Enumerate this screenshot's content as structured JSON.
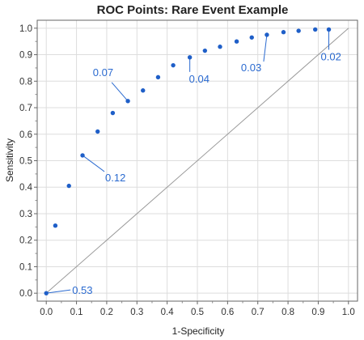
{
  "chart_data": {
    "type": "scatter",
    "title": "ROC Points: Rare Event Example",
    "xlabel": "1-Specificity",
    "ylabel": "Sensitivity",
    "xlim": [
      -0.03,
      1.03
    ],
    "ylim": [
      -0.03,
      1.03
    ],
    "xticks": [
      "0.0",
      "0.1",
      "0.2",
      "0.3",
      "0.4",
      "0.5",
      "0.6",
      "0.7",
      "0.8",
      "0.9",
      "1.0"
    ],
    "yticks": [
      "0.0",
      "0.1",
      "0.2",
      "0.3",
      "0.4",
      "0.5",
      "0.6",
      "0.7",
      "0.8",
      "0.9",
      "1.0"
    ],
    "grid": true,
    "diagonal": true,
    "point_color": "#1f5fc8",
    "points": [
      {
        "x": 0.0,
        "y": 0.0
      },
      {
        "x": 0.03,
        "y": 0.255
      },
      {
        "x": 0.075,
        "y": 0.405
      },
      {
        "x": 0.12,
        "y": 0.52
      },
      {
        "x": 0.17,
        "y": 0.61
      },
      {
        "x": 0.22,
        "y": 0.68
      },
      {
        "x": 0.27,
        "y": 0.725
      },
      {
        "x": 0.32,
        "y": 0.765
      },
      {
        "x": 0.37,
        "y": 0.815
      },
      {
        "x": 0.42,
        "y": 0.86
      },
      {
        "x": 0.475,
        "y": 0.89
      },
      {
        "x": 0.525,
        "y": 0.915
      },
      {
        "x": 0.575,
        "y": 0.93
      },
      {
        "x": 0.63,
        "y": 0.95
      },
      {
        "x": 0.68,
        "y": 0.965
      },
      {
        "x": 0.73,
        "y": 0.975
      },
      {
        "x": 0.785,
        "y": 0.985
      },
      {
        "x": 0.835,
        "y": 0.99
      },
      {
        "x": 0.89,
        "y": 0.995
      },
      {
        "x": 0.935,
        "y": 0.995
      }
    ],
    "annotations": [
      {
        "label": "0.53",
        "point_index": 0
      },
      {
        "label": "0.12",
        "point_index": 3
      },
      {
        "label": "0.07",
        "point_index": 6
      },
      {
        "label": "0.04",
        "point_index": 10
      },
      {
        "label": "0.03",
        "point_index": 15
      },
      {
        "label": "0.02",
        "point_index": 19
      }
    ]
  }
}
